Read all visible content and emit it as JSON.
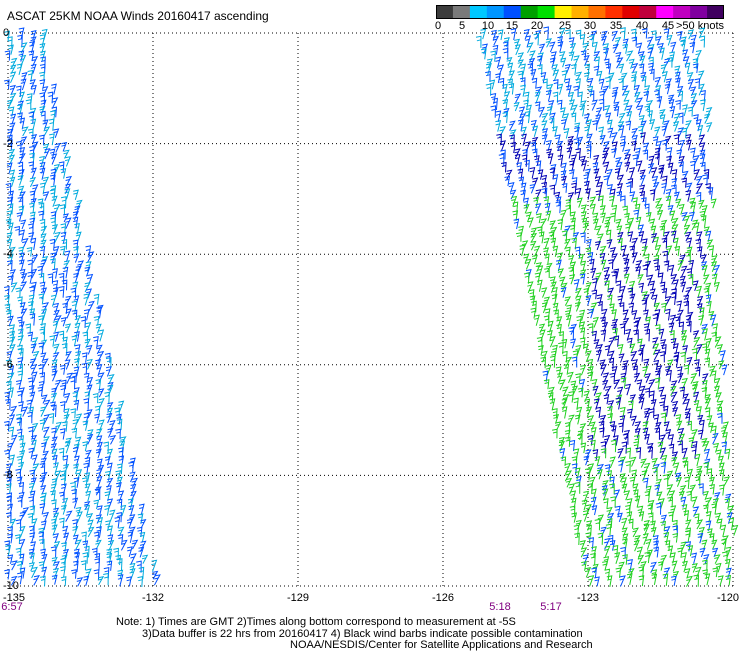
{
  "title": "ASCAT 25KM NOAA Winds 20160417 ascending",
  "colorbar": {
    "labels": [
      "0",
      "5",
      "10",
      "15",
      "20",
      "25",
      "30",
      "35",
      "40",
      "45",
      ">50 knots"
    ],
    "colors": [
      "#3c3c3c",
      "#7a7a7a",
      "#00c8ff",
      "#0096ff",
      "#0050ff",
      "#00a000",
      "#00e000",
      "#fff000",
      "#ffb000",
      "#ff7000",
      "#ff3000",
      "#e00000",
      "#c0003c",
      "#ff00ff",
      "#c000c0",
      "#8000a0",
      "#400060"
    ]
  },
  "axes": {
    "x_ticks": [
      "-135",
      "-132",
      "-129",
      "-126",
      "-123",
      "-120"
    ],
    "y_ticks": [
      "0",
      "-2",
      "-4",
      "-6",
      "-8",
      "-10"
    ]
  },
  "time_labels": [
    "6:57",
    "5:18",
    "5:17"
  ],
  "notes": [
    "Note: 1) Times are GMT 2)Times along bottom correspond to measurement at -5S",
    "3)Data buffer is 22 hrs from 20160417 4) Black wind barbs indicate possible contamination",
    "NOAA/NESDIS/Center for Satellite Applications and Research"
  ],
  "map_data": {
    "lon_range": [
      -135,
      -120
    ],
    "lat_range": [
      -10,
      0
    ],
    "grid": "dotted",
    "swaths": [
      {
        "name": "west",
        "region": "-135 to -132 lon",
        "dominant_colors": [
          "#00aadd",
          "#0050ff"
        ]
      },
      {
        "name": "east",
        "region": "-127 to -120 lon",
        "dominant_colors": [
          "#00aadd",
          "#0050ff",
          "#0000b4",
          "#20d020"
        ]
      }
    ]
  }
}
